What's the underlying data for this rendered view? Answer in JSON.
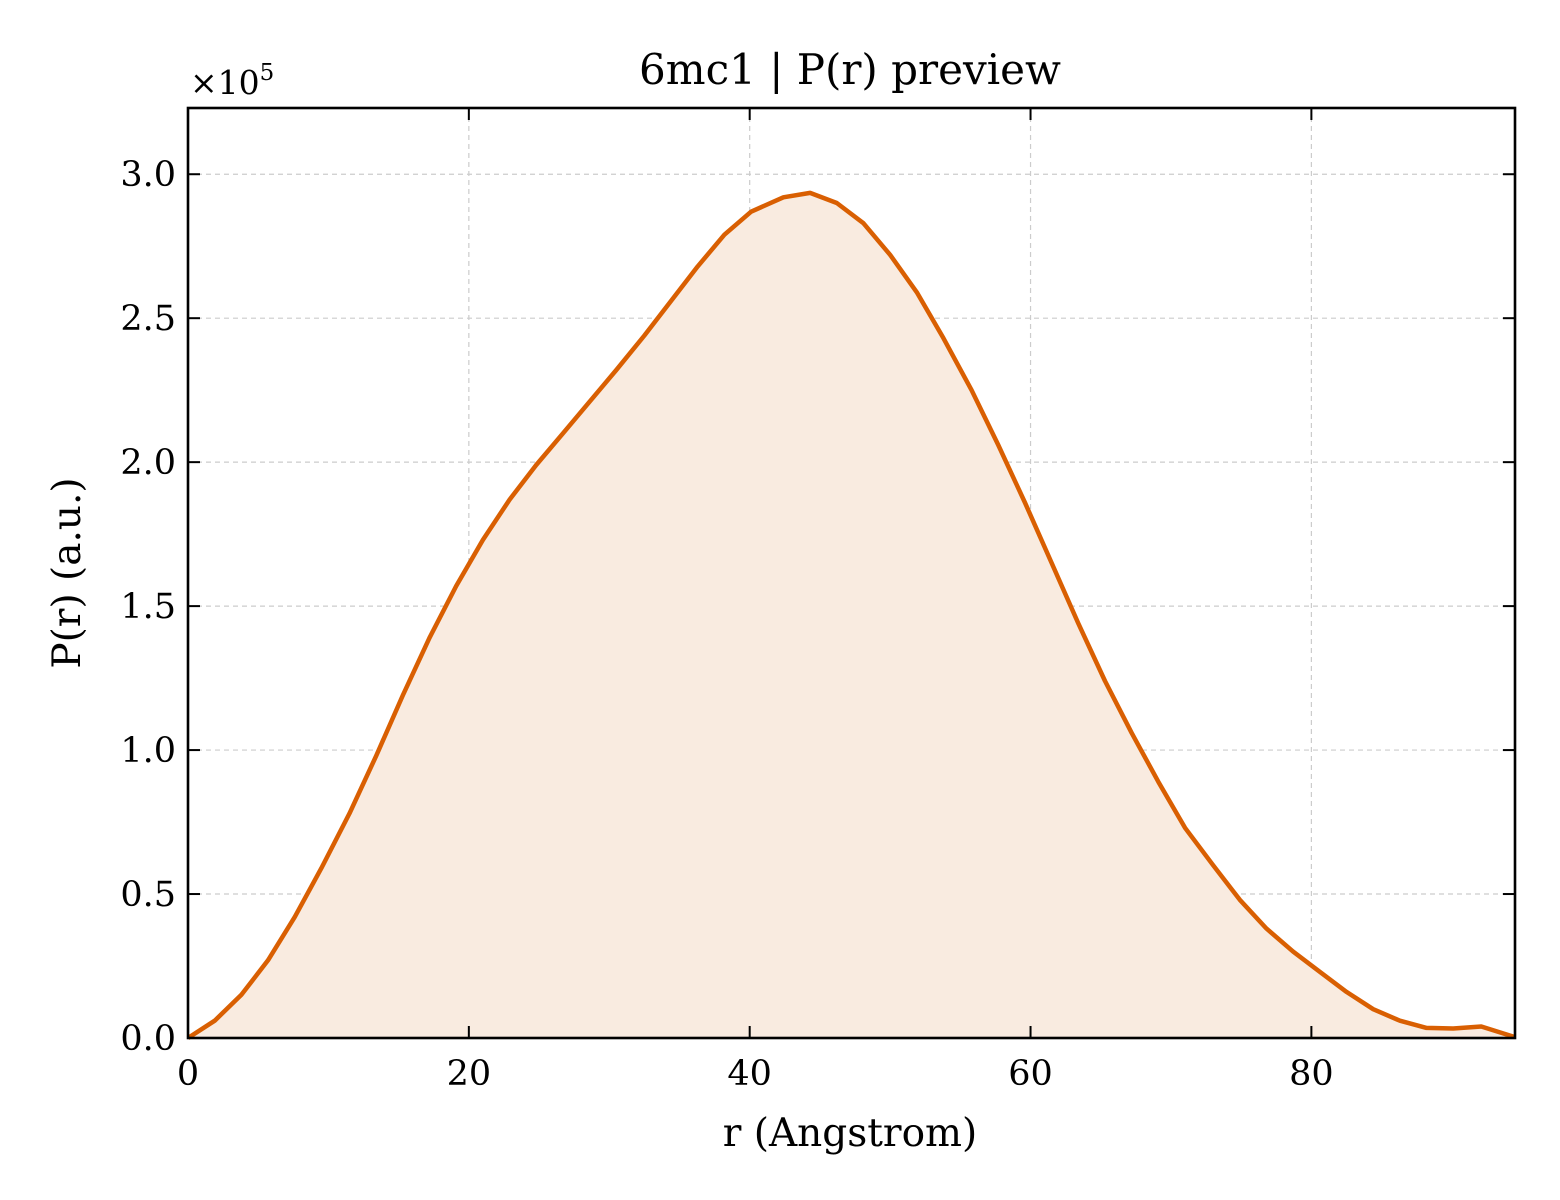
{
  "chart_data": {
    "type": "area",
    "title": "6mc1 | P(r) preview",
    "xlabel": "r (Angstrom)",
    "ylabel": "P(r) (a.u.)",
    "y_multiplier": "×10",
    "y_multiplier_exp": "5",
    "xlim": [
      0,
      94.5
    ],
    "ylim": [
      0,
      3.23
    ],
    "xticks": [
      0,
      20,
      40,
      60,
      80
    ],
    "xtick_labels": [
      "0",
      "20",
      "40",
      "60",
      "80"
    ],
    "yticks": [
      0,
      0.5,
      1.0,
      1.5,
      2.0,
      2.5,
      3.0
    ],
    "ytick_labels": [
      "0.0",
      "0.5",
      "1.0",
      "1.5",
      "2.0",
      "2.5",
      "3.0"
    ],
    "grid": true,
    "line_color": "#d95f02",
    "fill_color": "#f9ebe0",
    "series": [
      {
        "x": [
          0,
          1.9,
          3.8,
          5.7,
          7.6,
          9.5,
          11.5,
          13.4,
          15.3,
          17.2,
          19.1,
          21.0,
          22.9,
          24.8,
          26.7,
          28.6,
          30.5,
          32.5,
          34.4,
          36.3,
          38.2,
          40.1,
          42.4,
          44.3,
          46.2,
          48.1,
          50.0,
          51.9,
          53.8,
          55.8,
          57.7,
          59.6,
          61.5,
          63.4,
          65.3,
          67.2,
          69.1,
          71.0,
          73.0,
          74.9,
          76.8,
          78.7,
          80.6,
          82.5,
          84.4,
          86.3,
          88.2,
          90.1,
          92.1,
          94.5
        ],
        "y": [
          0.0,
          0.06,
          0.15,
          0.27,
          0.42,
          0.59,
          0.78,
          0.98,
          1.19,
          1.39,
          1.57,
          1.73,
          1.87,
          1.99,
          2.1,
          2.21,
          2.32,
          2.44,
          2.56,
          2.68,
          2.79,
          2.87,
          2.92,
          2.935,
          2.9,
          2.83,
          2.72,
          2.59,
          2.43,
          2.25,
          2.06,
          1.86,
          1.65,
          1.44,
          1.24,
          1.06,
          0.89,
          0.73,
          0.6,
          0.48,
          0.38,
          0.3,
          0.23,
          0.16,
          0.1,
          0.06,
          0.035,
          0.033,
          0.04,
          0.003
        ]
      }
    ]
  }
}
